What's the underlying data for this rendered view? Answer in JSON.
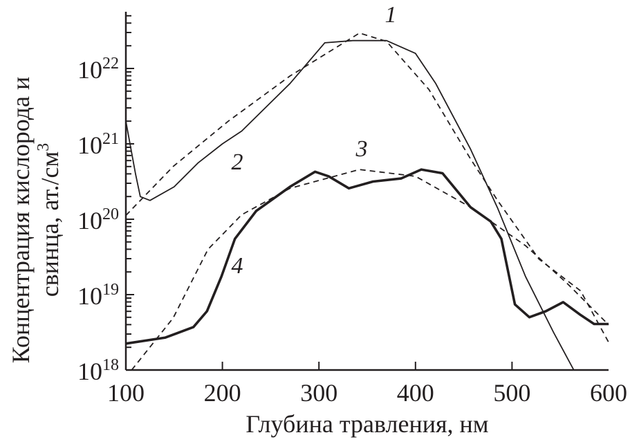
{
  "chart_data": {
    "type": "line",
    "xlabel": "Глубина травления, нм",
    "ylabel_lines": [
      "Концентрация кислорода и",
      "свинца, ат./см"
    ],
    "ylabel_sup": "3",
    "xlim": [
      100,
      600
    ],
    "ylim": [
      1e+18,
      5.5e+22
    ],
    "yscale": "log",
    "grid": false,
    "x_ticks": [
      "100",
      "200",
      "300",
      "400",
      "500",
      "600"
    ],
    "y_ticks": [
      {
        "base": "10",
        "exp": "18"
      },
      {
        "base": "10",
        "exp": "19"
      },
      {
        "base": "10",
        "exp": "20"
      },
      {
        "base": "10",
        "exp": "21"
      },
      {
        "base": "10",
        "exp": "22"
      }
    ],
    "color": "#231f20",
    "series": [
      {
        "label": "1",
        "style": "solid-thin",
        "x": [
          100,
          110,
          115,
          125,
          150,
          175,
          200,
          220,
          270,
          306,
          335,
          370,
          400,
          421,
          457,
          485,
          514,
          543,
          564
        ],
        "log10_y": [
          21.3,
          20.6,
          20.3,
          20.25,
          20.43,
          20.75,
          21.0,
          21.17,
          21.8,
          22.34,
          22.37,
          22.37,
          22.2,
          21.8,
          20.93,
          20.15,
          19.24,
          18.5,
          18.0
        ]
      },
      {
        "label": "2",
        "style": "dashed",
        "x": [
          100,
          149,
          206,
          270,
          342,
          370,
          414,
          457,
          485,
          528,
          571,
          600
        ],
        "log10_y": [
          20.05,
          20.7,
          21.3,
          21.9,
          22.47,
          22.36,
          21.72,
          20.8,
          20.25,
          19.47,
          19.05,
          18.37
        ]
      },
      {
        "label": "3",
        "style": "dashed",
        "x": [
          106,
          149,
          185,
          220,
          270,
          342,
          400,
          457,
          514,
          557,
          600
        ],
        "log10_y": [
          18.0,
          18.69,
          19.6,
          20.06,
          20.41,
          20.66,
          20.57,
          20.16,
          19.65,
          19.15,
          18.6
        ]
      },
      {
        "label": "4",
        "style": "solid-thick",
        "x": [
          100,
          141,
          170,
          184,
          199,
          213,
          235,
          270,
          296,
          310,
          331,
          356,
          385,
          406,
          428,
          457,
          478,
          489,
          503,
          518,
          535,
          553,
          571,
          585,
          600
        ],
        "log10_y": [
          18.35,
          18.43,
          18.57,
          18.78,
          19.24,
          19.74,
          20.11,
          20.43,
          20.63,
          20.57,
          20.41,
          20.5,
          20.54,
          20.66,
          20.61,
          20.16,
          19.97,
          19.74,
          18.87,
          18.7,
          18.78,
          18.9,
          18.73,
          18.61,
          18.61
        ]
      }
    ]
  }
}
